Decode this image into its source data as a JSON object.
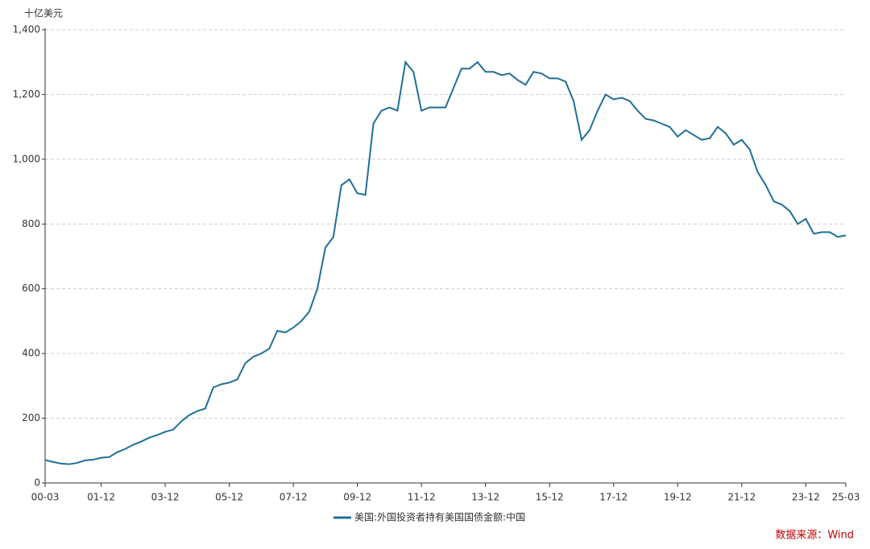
{
  "chart_data": {
    "type": "line",
    "y_unit": "十亿美元",
    "categories": [
      "00-03",
      null,
      null,
      null,
      null,
      null,
      null,
      "01-12",
      null,
      null,
      null,
      null,
      null,
      null,
      null,
      "03-12",
      null,
      null,
      null,
      null,
      null,
      null,
      null,
      "05-12",
      null,
      null,
      null,
      null,
      null,
      null,
      null,
      "07-12",
      null,
      null,
      null,
      null,
      null,
      null,
      null,
      "09-12",
      null,
      null,
      null,
      null,
      null,
      null,
      null,
      "11-12",
      null,
      null,
      null,
      null,
      null,
      null,
      null,
      "13-12",
      null,
      null,
      null,
      null,
      null,
      null,
      null,
      "15-12",
      null,
      null,
      null,
      null,
      null,
      null,
      null,
      "17-12",
      null,
      null,
      null,
      null,
      null,
      null,
      null,
      "19-12",
      null,
      null,
      null,
      null,
      null,
      null,
      null,
      "21-12",
      null,
      null,
      null,
      null,
      null,
      null,
      null,
      "23-12",
      null,
      null,
      null,
      null,
      "25-03"
    ],
    "series": [
      {
        "name": "美国:外国投资者持有美国国债金额:中国",
        "color": "#1f6f94",
        "values": [
          71,
          65,
          60,
          58,
          62,
          70,
          72,
          78,
          80,
          95,
          105,
          118,
          128,
          140,
          148,
          158,
          165,
          190,
          210,
          222,
          230,
          295,
          305,
          310,
          320,
          370,
          390,
          400,
          415,
          470,
          465,
          480,
          500,
          530,
          600,
          727,
          760,
          920,
          938,
          895,
          890,
          1110,
          1150,
          1160,
          1150,
          1300,
          1270,
          1150,
          1160,
          1160,
          1160,
          1220,
          1280,
          1280,
          1300,
          1270,
          1270,
          1260,
          1265,
          1245,
          1230,
          1270,
          1265,
          1250,
          1250,
          1240,
          1180,
          1060,
          1090,
          1150,
          1200,
          1185,
          1190,
          1180,
          1150,
          1125,
          1120,
          1110,
          1100,
          1070,
          1090,
          1075,
          1060,
          1065,
          1100,
          1080,
          1045,
          1060,
          1030,
          960,
          920,
          870,
          860,
          840,
          800,
          816,
          770,
          775,
          775,
          760,
          765
        ]
      }
    ],
    "ylim": [
      0,
      1400
    ],
    "yticks": [
      0,
      200,
      400,
      600,
      800,
      {
        "value": 1000,
        "label": "1,000"
      },
      {
        "value": 1200,
        "label": "1,200"
      },
      {
        "value": 1400,
        "label": "1,400"
      }
    ],
    "grid": true,
    "legend": "bottom",
    "source": "数据来源：Wind"
  }
}
